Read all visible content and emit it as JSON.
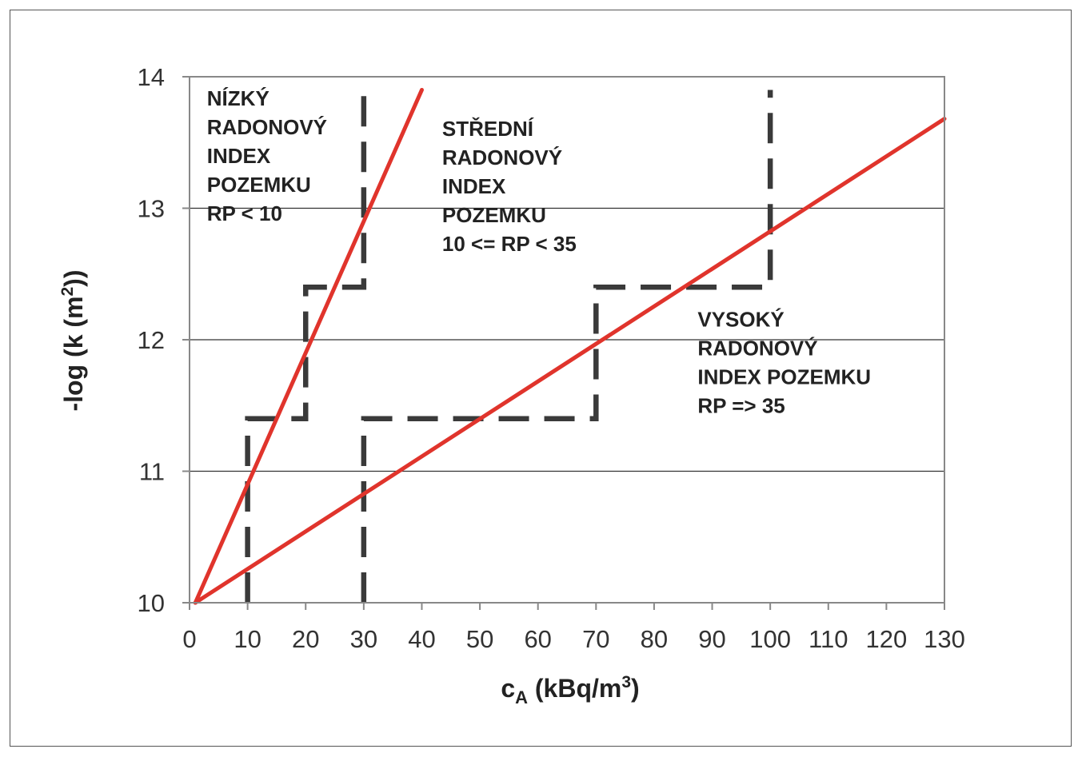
{
  "chart_data": {
    "type": "line",
    "title": "",
    "xlabel": {
      "main": "c",
      "sub": "A",
      "units": " (kBq/m",
      "sup": "3",
      "close": ")"
    },
    "ylabel": {
      "main": "-log (k (m",
      "sup": "2",
      "close": "))"
    },
    "xlim": [
      0,
      130
    ],
    "ylim": [
      10,
      14
    ],
    "x_ticks": [
      "0",
      "10",
      "20",
      "30",
      "40",
      "50",
      "60",
      "70",
      "80",
      "90",
      "100",
      "110",
      "120",
      "130"
    ],
    "y_ticks": [
      "10",
      "11",
      "12",
      "13",
      "14"
    ],
    "grid": {
      "horizontal": true,
      "vertical": false
    },
    "series": [
      {
        "values": [
          [
            1,
            10.0
          ],
          [
            40,
            13.9
          ]
        ],
        "style": "solid",
        "color": "#e0342c"
      },
      {
        "values": [
          [
            1,
            10.0
          ],
          [
            130,
            13.68
          ]
        ],
        "style": "solid",
        "color": "#e0342c"
      }
    ],
    "boundaries": [
      {
        "style": "dashed",
        "color": "#3a3a3a",
        "values": [
          [
            10,
            10.0
          ],
          [
            10,
            11.4
          ],
          [
            20,
            11.4
          ],
          [
            20,
            12.4
          ],
          [
            30,
            12.4
          ],
          [
            30,
            13.9
          ]
        ]
      },
      {
        "style": "dashed",
        "color": "#3a3a3a",
        "values": [
          [
            30,
            10.0
          ],
          [
            30,
            11.4
          ],
          [
            70,
            11.4
          ],
          [
            70,
            12.4
          ],
          [
            100,
            12.4
          ],
          [
            100,
            13.9
          ]
        ]
      }
    ],
    "annotations": [
      {
        "lines": [
          "NÍZKÝ",
          "RADONOVÝ",
          "INDEX",
          "POZEMKU",
          "RP < 10"
        ],
        "x": 3,
        "y": 13.78
      },
      {
        "lines": [
          "STŘEDNÍ",
          "RADONOVÝ",
          "INDEX",
          "POZEMKU",
          "10 <= RP < 35"
        ],
        "x": 43.5,
        "y": 13.55
      },
      {
        "lines": [
          "VYSOKÝ",
          "RADONOVÝ",
          "INDEX POZEMKU",
          "RP => 35"
        ],
        "x": 87.5,
        "y": 12.1
      }
    ]
  }
}
